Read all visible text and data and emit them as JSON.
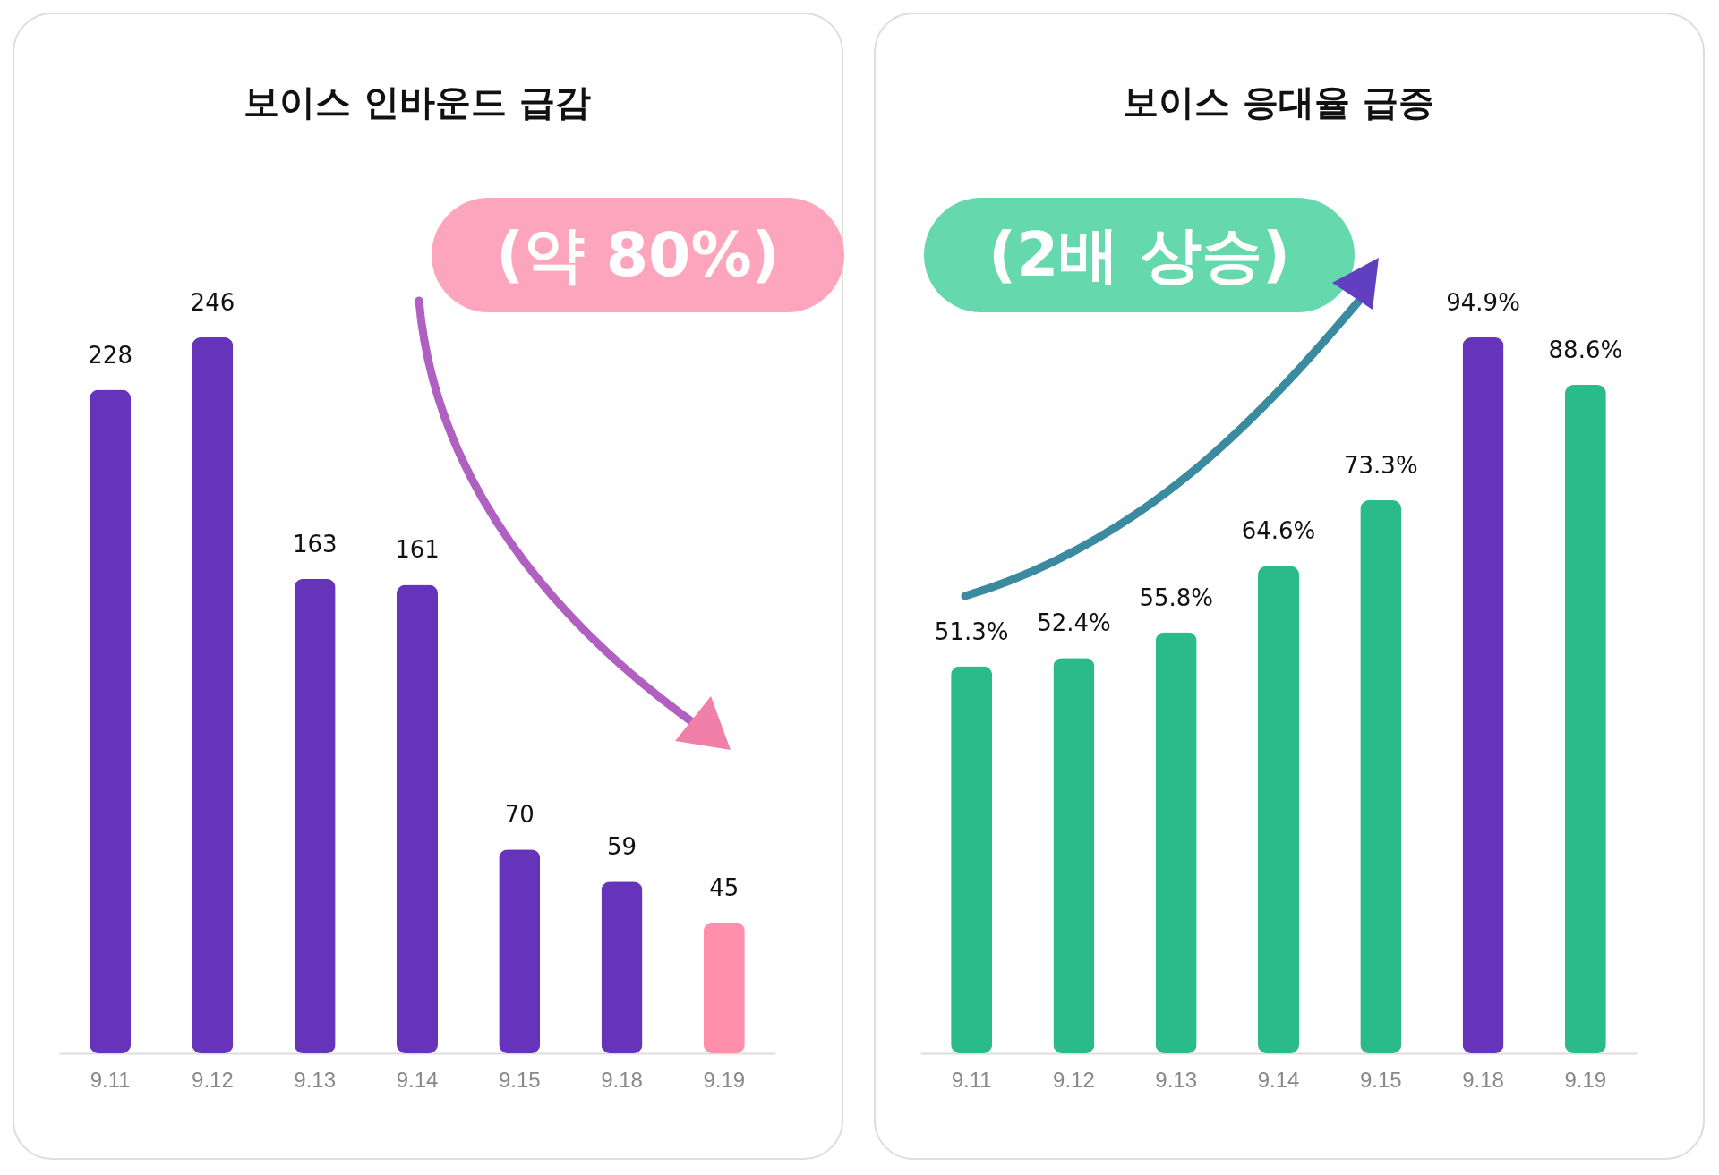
{
  "chart_data": [
    {
      "type": "bar",
      "title": "보이스 인바운드 급감",
      "categories": [
        "9.11",
        "9.12",
        "9.13",
        "9.14",
        "9.15",
        "9.18",
        "9.19"
      ],
      "values": [
        228,
        246,
        163,
        161,
        70,
        59,
        45
      ],
      "colors": [
        "#6633bb",
        "#6633bb",
        "#6633bb",
        "#6633bb",
        "#6633bb",
        "#6633bb",
        "#ff8fab"
      ],
      "data_labels": true,
      "annotations": [
        "(약 80%)"
      ]
    },
    {
      "type": "bar",
      "title": "보이스 응대율 급증",
      "categories": [
        "9.11",
        "9.12",
        "9.13",
        "9.14",
        "9.15",
        "9.18",
        "9.19"
      ],
      "values": [
        51.3,
        52.4,
        55.8,
        64.6,
        73.3,
        94.9,
        88.6
      ],
      "value_labels": [
        "51.3%",
        "52.4%",
        "55.8%",
        "64.6%",
        "73.3%",
        "94.9%",
        "88.6%"
      ],
      "colors": [
        "#2bbb8a",
        "#2bbb8a",
        "#2bbb8a",
        "#2bbb8a",
        "#2bbb8a",
        "#6633bb",
        "#2bbb8a"
      ],
      "annotations": [
        "(2배 상승)"
      ]
    }
  ]
}
